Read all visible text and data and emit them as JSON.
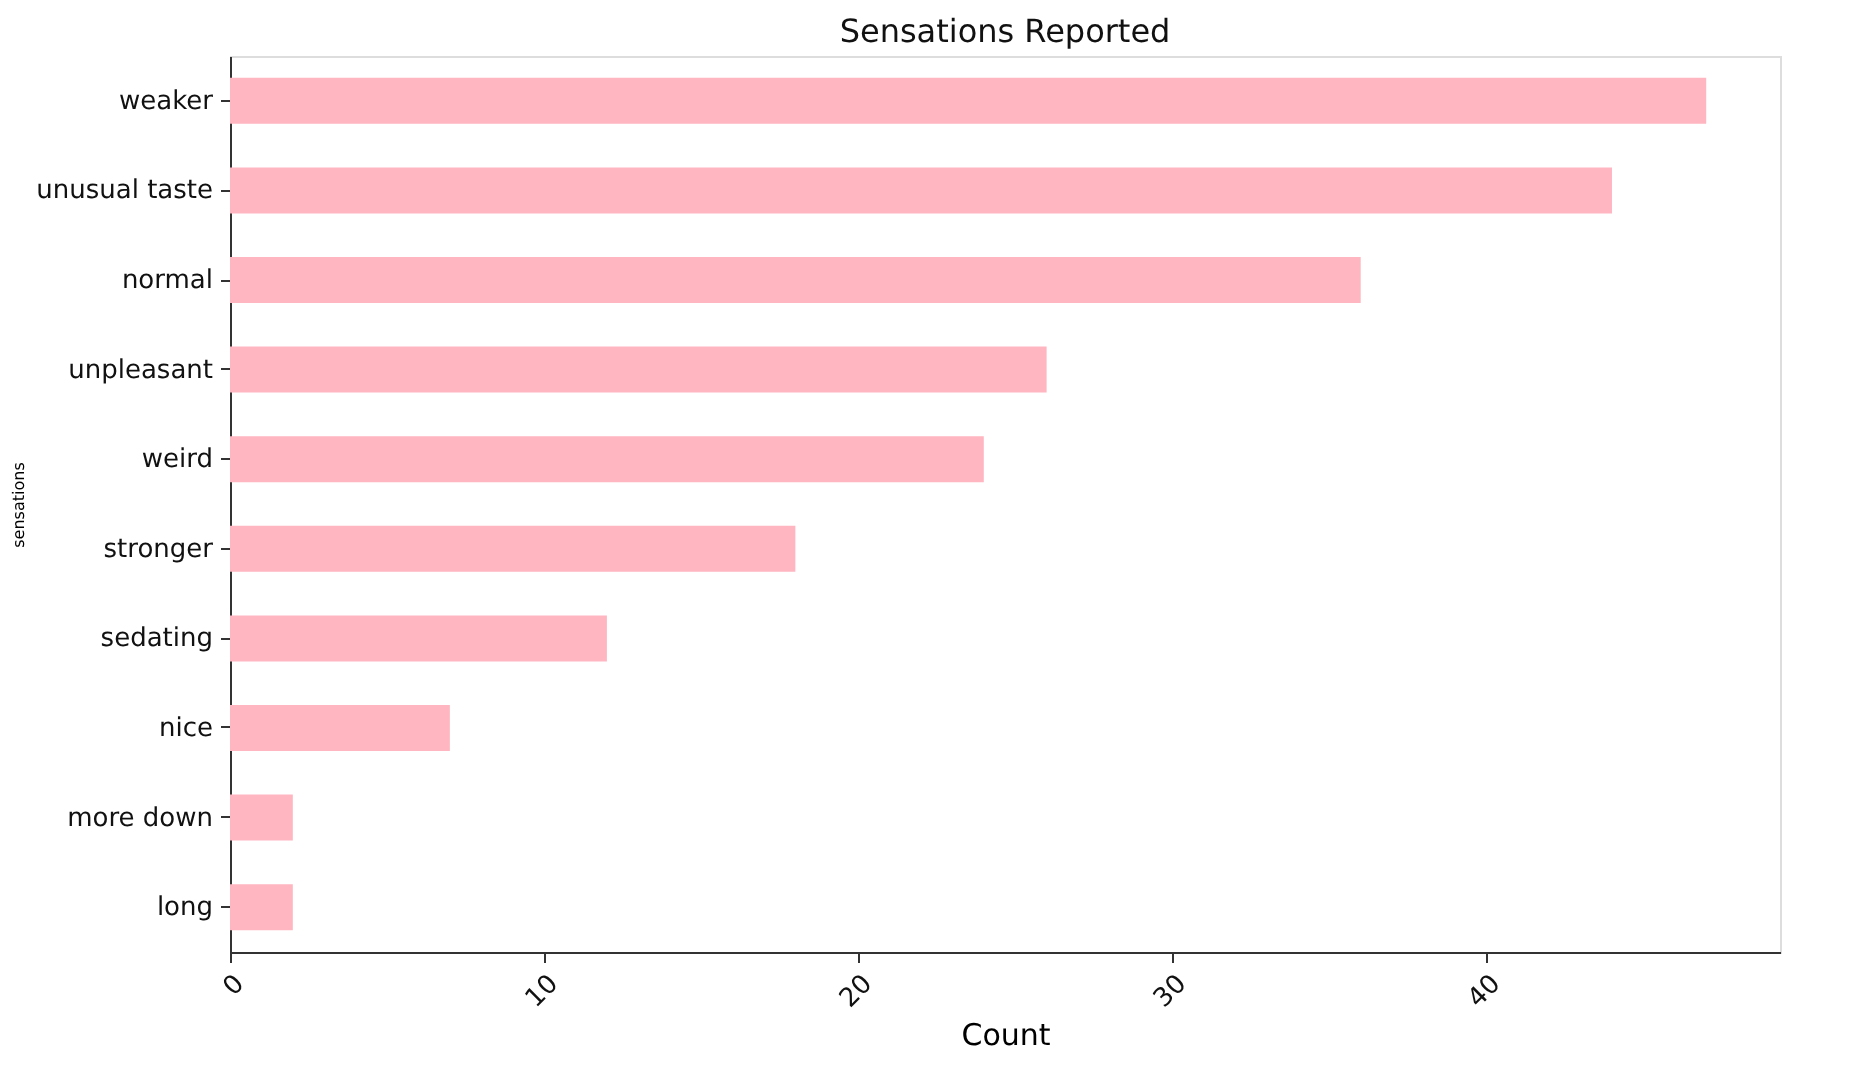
{
  "chart_data": {
    "type": "bar",
    "orientation": "horizontal",
    "title": "Sensations Reported",
    "xlabel": "Count",
    "ylabel": "sensations",
    "categories": [
      "weaker",
      "unusual taste",
      "normal",
      "unpleasant",
      "weird",
      "stronger",
      "sedating",
      "nice",
      "more down",
      "long"
    ],
    "values": [
      47,
      44,
      36,
      26,
      24,
      18,
      12,
      7,
      2,
      2
    ],
    "color": "#ffb6c1",
    "xlim": [
      0,
      49.35
    ],
    "xticks": [
      0,
      10,
      20,
      30,
      40
    ],
    "grid": false
  }
}
